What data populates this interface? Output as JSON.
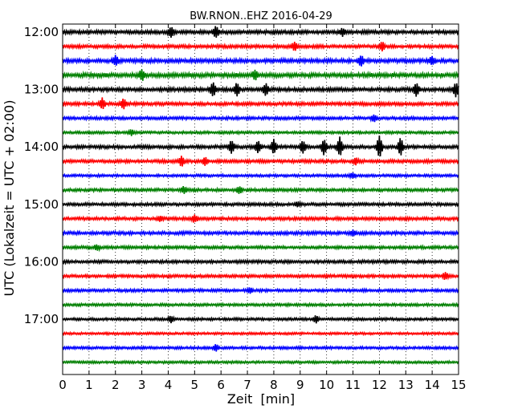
{
  "chart_data": {
    "type": "line",
    "title": "BW.RNON..EHZ 2016-04-29",
    "xlabel": "Zeit  [min]",
    "ylabel": "UTC (Lokalzeit = UTC + 02:00)",
    "xlim": [
      0,
      15
    ],
    "x_ticks": [
      "0",
      "1",
      "2",
      "3",
      "4",
      "5",
      "6",
      "7",
      "8",
      "9",
      "10",
      "11",
      "12",
      "13",
      "14",
      "15"
    ],
    "y_ticks": [
      "12:00",
      "13:00",
      "14:00",
      "15:00",
      "16:00",
      "17:00"
    ],
    "grid": "vertical dotted at each minute",
    "trace_colors": [
      "#000000",
      "#ff0000",
      "#0000ff",
      "#008000"
    ],
    "traces": [
      {
        "start": "12:00",
        "noise": 2.2,
        "events": [
          {
            "t": 4.1,
            "amp": 6
          },
          {
            "t": 5.8,
            "amp": 7
          },
          {
            "t": 10.6,
            "amp": 4
          }
        ]
      },
      {
        "start": "12:15",
        "noise": 2.0,
        "events": [
          {
            "t": 8.8,
            "amp": 5
          },
          {
            "t": 12.1,
            "amp": 5
          }
        ]
      },
      {
        "start": "12:30",
        "noise": 2.4,
        "events": [
          {
            "t": 2.0,
            "amp": 5
          },
          {
            "t": 11.3,
            "amp": 6
          },
          {
            "t": 14.0,
            "amp": 5
          }
        ]
      },
      {
        "start": "12:45",
        "noise": 2.6,
        "events": [
          {
            "t": 3.0,
            "amp": 6
          },
          {
            "t": 7.3,
            "amp": 5
          }
        ]
      },
      {
        "start": "13:00",
        "noise": 2.3,
        "events": [
          {
            "t": 5.7,
            "amp": 8
          },
          {
            "t": 6.6,
            "amp": 7
          },
          {
            "t": 7.7,
            "amp": 7
          },
          {
            "t": 13.4,
            "amp": 7
          },
          {
            "t": 14.9,
            "amp": 8
          }
        ]
      },
      {
        "start": "13:15",
        "noise": 2.0,
        "events": [
          {
            "t": 1.5,
            "amp": 6
          },
          {
            "t": 2.3,
            "amp": 6
          }
        ]
      },
      {
        "start": "13:30",
        "noise": 1.8,
        "events": [
          {
            "t": 11.8,
            "amp": 4
          }
        ]
      },
      {
        "start": "13:45",
        "noise": 1.6,
        "events": [
          {
            "t": 2.6,
            "amp": 3
          }
        ]
      },
      {
        "start": "14:00",
        "noise": 2.0,
        "events": [
          {
            "t": 6.4,
            "amp": 8
          },
          {
            "t": 7.4,
            "amp": 7
          },
          {
            "t": 8.0,
            "amp": 8
          },
          {
            "t": 9.1,
            "amp": 7
          },
          {
            "t": 9.9,
            "amp": 9
          },
          {
            "t": 10.5,
            "amp": 11
          },
          {
            "t": 12.0,
            "amp": 13
          },
          {
            "t": 12.8,
            "amp": 10
          }
        ]
      },
      {
        "start": "14:15",
        "noise": 2.0,
        "events": [
          {
            "t": 4.5,
            "amp": 6
          },
          {
            "t": 5.4,
            "amp": 4
          },
          {
            "t": 11.1,
            "amp": 4
          }
        ]
      },
      {
        "start": "14:30",
        "noise": 1.6,
        "events": [
          {
            "t": 11.0,
            "amp": 3
          }
        ]
      },
      {
        "start": "14:45",
        "noise": 1.8,
        "events": [
          {
            "t": 4.6,
            "amp": 4
          },
          {
            "t": 6.7,
            "amp": 4
          }
        ]
      },
      {
        "start": "15:00",
        "noise": 1.8,
        "events": [
          {
            "t": 8.9,
            "amp": 3
          }
        ]
      },
      {
        "start": "15:15",
        "noise": 1.9,
        "events": [
          {
            "t": 5.0,
            "amp": 4
          },
          {
            "t": 3.7,
            "amp": 3
          }
        ]
      },
      {
        "start": "15:30",
        "noise": 2.0,
        "events": [
          {
            "t": 11.0,
            "amp": 3
          }
        ]
      },
      {
        "start": "15:45",
        "noise": 1.8,
        "events": [
          {
            "t": 1.3,
            "amp": 3
          }
        ]
      },
      {
        "start": "16:00",
        "noise": 1.9,
        "events": []
      },
      {
        "start": "16:15",
        "noise": 1.8,
        "events": [
          {
            "t": 14.5,
            "amp": 4
          }
        ]
      },
      {
        "start": "16:30",
        "noise": 1.7,
        "events": [
          {
            "t": 7.1,
            "amp": 3
          }
        ]
      },
      {
        "start": "16:45",
        "noise": 1.6,
        "events": []
      },
      {
        "start": "17:00",
        "noise": 1.6,
        "events": [
          {
            "t": 4.1,
            "amp": 4
          },
          {
            "t": 9.6,
            "amp": 4
          }
        ]
      },
      {
        "start": "17:15",
        "noise": 1.4,
        "events": []
      },
      {
        "start": "17:30",
        "noise": 1.6,
        "events": [
          {
            "t": 5.8,
            "amp": 4
          }
        ]
      },
      {
        "start": "17:45",
        "noise": 1.5,
        "events": []
      }
    ]
  }
}
